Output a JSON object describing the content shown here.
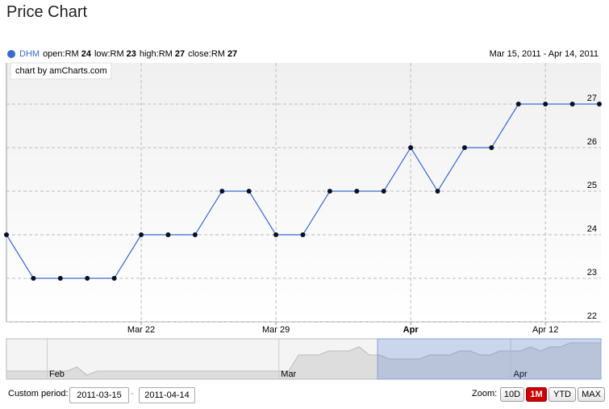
{
  "header": {
    "title": "Price Chart"
  },
  "legend": {
    "name": "DHM",
    "items": [
      {
        "label": "open:RM",
        "value": "24"
      },
      {
        "label": "low:RM",
        "value": "23"
      },
      {
        "label": "high:RM",
        "value": "27"
      },
      {
        "label": "close:RM",
        "value": "27"
      }
    ],
    "range": "Mar 15, 2011 - Apr 14, 2011"
  },
  "credit": "chart by amCharts.com",
  "chart_data": {
    "type": "line",
    "categories": [
      null,
      null,
      null,
      null,
      null,
      "Mar 22",
      null,
      null,
      null,
      null,
      "Mar 29",
      null,
      null,
      null,
      null,
      "Apr",
      null,
      null,
      null,
      null,
      "Apr 12",
      null,
      null
    ],
    "series": [
      {
        "name": "DHM",
        "color": "#3a6bd0",
        "values": [
          24,
          23,
          23,
          23,
          23,
          24,
          24,
          24,
          25,
          25,
          24,
          24,
          25,
          25,
          25,
          26,
          25,
          26,
          26,
          27,
          27,
          27,
          27
        ]
      }
    ],
    "ylim": [
      22,
      28
    ],
    "yticks": [
      22,
      23,
      24,
      25,
      26,
      27
    ],
    "grid": true
  },
  "navigator": {
    "type": "area",
    "categories": [
      null,
      null,
      null,
      null,
      null,
      "Feb",
      null,
      null,
      null,
      null,
      null,
      null,
      null,
      null,
      null,
      null,
      null,
      null,
      null,
      null,
      null,
      null,
      null,
      null,
      null,
      null,
      null,
      null,
      "Mar",
      null,
      null,
      null,
      null,
      null,
      null,
      null,
      null,
      null,
      null,
      null,
      null,
      null,
      null,
      null,
      null,
      null,
      null,
      null,
      null,
      null,
      null,
      "Apr",
      null,
      null,
      null,
      null,
      null,
      null,
      null,
      null
    ],
    "values": [
      20,
      20,
      20,
      20,
      20,
      20,
      20,
      21,
      19,
      20,
      20,
      20,
      20,
      20,
      20,
      20,
      20,
      20,
      20,
      20,
      20,
      20,
      20,
      20,
      20,
      20,
      20,
      20,
      20,
      24,
      24,
      24,
      25,
      25,
      25,
      26,
      24,
      24,
      23,
      23,
      23,
      23,
      24,
      24,
      24,
      25,
      25,
      24,
      24,
      25,
      25,
      25,
      26,
      25,
      26,
      26,
      27,
      27,
      27,
      27
    ],
    "ylim": [
      18,
      28
    ]
  },
  "controls": {
    "custom_label": "Custom period:",
    "from": "2011-03-15",
    "sep": "-",
    "to": "2011-04-14",
    "zoom_label": "Zoom:",
    "zoom": [
      "10D",
      "1M",
      "YTD",
      "MAX"
    ],
    "active": "1M"
  }
}
